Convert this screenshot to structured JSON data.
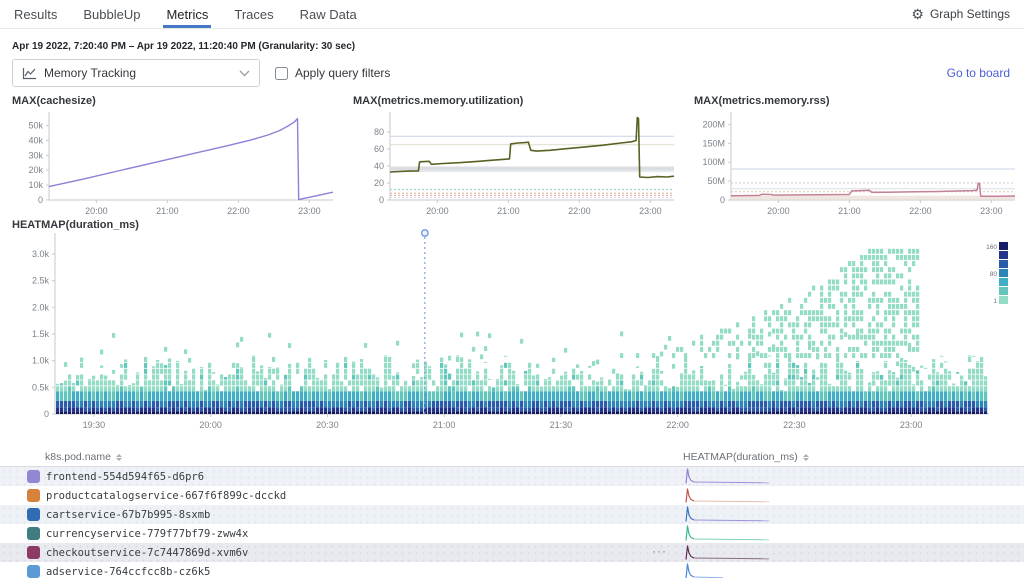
{
  "header": {
    "tabs": [
      {
        "label": "Results",
        "active": false
      },
      {
        "label": "BubbleUp",
        "active": false
      },
      {
        "label": "Metrics",
        "active": true
      },
      {
        "label": "Traces",
        "active": false
      },
      {
        "label": "Raw Data",
        "active": false
      }
    ],
    "settings_label": "Graph Settings"
  },
  "time_range": "Apr 19 2022, 7:20:40 PM – Apr 19 2022, 11:20:40 PM (Granularity: 30 sec)",
  "query": {
    "selector_value": "Memory Tracking",
    "filter_label": "Apply query filters",
    "board_link": "Go to board"
  },
  "colors": {
    "accent_blue": "#4678c8",
    "link_blue": "#4c5fd5",
    "axis_text": "#7c828a",
    "axis_line": "#c6cacd"
  },
  "chart_data": [
    {
      "type": "line",
      "title": "MAX(cachesize)",
      "t_range": [
        0,
        240
      ],
      "x_ticks": [
        {
          "t": 40,
          "label": "20:00"
        },
        {
          "t": 100,
          "label": "21:00"
        },
        {
          "t": 160,
          "label": "22:00"
        },
        {
          "t": 220,
          "label": "23:00"
        }
      ],
      "ylim": [
        0,
        57000
      ],
      "y_ticks": [
        {
          "v": 0,
          "label": "0"
        },
        {
          "v": 10000,
          "label": "10k"
        },
        {
          "v": 20000,
          "label": "20k"
        },
        {
          "v": 30000,
          "label": "30k"
        },
        {
          "v": 40000,
          "label": "40k"
        },
        {
          "v": 50000,
          "label": "50k"
        }
      ],
      "series": [
        {
          "name": "cachesize",
          "color": "#8d80d8",
          "width": 1.4,
          "points": [
            [
              0,
              9000
            ],
            [
              30,
              14200
            ],
            [
              60,
              19800
            ],
            [
              90,
              25300
            ],
            [
              120,
              30800
            ],
            [
              150,
              36300
            ],
            [
              170,
              40100
            ],
            [
              185,
              43600
            ],
            [
              195,
              46600
            ],
            [
              202,
              49600
            ],
            [
              207,
              52200
            ],
            [
              210,
              54600
            ],
            [
              211,
              300
            ],
            [
              240,
              5200
            ]
          ]
        }
      ]
    },
    {
      "type": "line",
      "title": "MAX(metrics.memory.utilization)",
      "t_range": [
        0,
        240
      ],
      "x_ticks": [
        {
          "t": 40,
          "label": "20:00"
        },
        {
          "t": 100,
          "label": "21:00"
        },
        {
          "t": 160,
          "label": "22:00"
        },
        {
          "t": 220,
          "label": "23:00"
        }
      ],
      "ylim": [
        0,
        100
      ],
      "y_ticks": [
        {
          "v": 0,
          "label": "0"
        },
        {
          "v": 20,
          "label": "20"
        },
        {
          "v": 40,
          "label": "40"
        },
        {
          "v": 60,
          "label": "60"
        },
        {
          "v": 80,
          "label": "80"
        }
      ],
      "series": [
        {
          "name": "flat-75",
          "color": "#c9d2e6",
          "width": 1,
          "points": [
            [
              0,
              75
            ],
            [
              240,
              75
            ]
          ]
        },
        {
          "name": "flat-65",
          "color": "#d8e0cb",
          "width": 1,
          "points": [
            [
              0,
              65
            ],
            [
              240,
              65
            ]
          ]
        },
        {
          "name": "flat-37",
          "color": "#dadde1",
          "width": 4,
          "points": [
            [
              0,
              37
            ],
            [
              240,
              37
            ]
          ]
        },
        {
          "name": "flat-34",
          "color": "#e7e9ec",
          "width": 2,
          "points": [
            [
              0,
              34
            ],
            [
              240,
              34
            ]
          ]
        },
        {
          "name": "flat-12",
          "color": "#8fd0c8",
          "width": 1,
          "dash": "2,2",
          "points": [
            [
              0,
              12.5
            ],
            [
              240,
              12.5
            ]
          ]
        },
        {
          "name": "flat-8",
          "color": "#e8b48c",
          "width": 1,
          "dash": "2,2",
          "points": [
            [
              0,
              8
            ],
            [
              240,
              8
            ]
          ]
        },
        {
          "name": "flat-5",
          "color": "#e6a0a8",
          "width": 1,
          "dash": "2,2",
          "points": [
            [
              0,
              5.5
            ],
            [
              240,
              5.5
            ]
          ]
        },
        {
          "name": "flat-3",
          "color": "#d8dce0",
          "width": 1,
          "dash": "2,2",
          "points": [
            [
              0,
              3
            ],
            [
              240,
              3
            ]
          ]
        },
        {
          "name": "memory.utilization",
          "color": "#5a6125",
          "width": 1.6,
          "points": [
            [
              0,
              33
            ],
            [
              8,
              33.5
            ],
            [
              16,
              34
            ],
            [
              24,
              34.2
            ],
            [
              25,
              45
            ],
            [
              33,
              45.5
            ],
            [
              35,
              42
            ],
            [
              45,
              43
            ],
            [
              60,
              44
            ],
            [
              75,
              45.5
            ],
            [
              88,
              47
            ],
            [
              98,
              48
            ],
            [
              101,
              48.3
            ],
            [
              102,
              66
            ],
            [
              108,
              67
            ],
            [
              114,
              67.5
            ],
            [
              117,
              68
            ],
            [
              119,
              58.5
            ],
            [
              124,
              57.5
            ],
            [
              135,
              58.5
            ],
            [
              150,
              60.5
            ],
            [
              165,
              62.5
            ],
            [
              180,
              64.5
            ],
            [
              195,
              67
            ],
            [
              204,
              68.5
            ],
            [
              208,
              70
            ],
            [
              209,
              97
            ],
            [
              210,
              96
            ],
            [
              211,
              27
            ],
            [
              218,
              26.5
            ],
            [
              226,
              27.5
            ],
            [
              234,
              27
            ],
            [
              240,
              28
            ]
          ]
        }
      ]
    },
    {
      "type": "line",
      "title": "MAX(metrics.memory.rss)",
      "t_range": [
        0,
        240
      ],
      "x_ticks": [
        {
          "t": 40,
          "label": "20:00"
        },
        {
          "t": 100,
          "label": "21:00"
        },
        {
          "t": 160,
          "label": "22:00"
        },
        {
          "t": 220,
          "label": "23:00"
        }
      ],
      "ylim": [
        0,
        225
      ],
      "y_ticks": [
        {
          "v": 0,
          "label": "0"
        },
        {
          "v": 50,
          "label": "50M"
        },
        {
          "v": 100,
          "label": "100M"
        },
        {
          "v": 150,
          "label": "150M"
        },
        {
          "v": 200,
          "label": "200M"
        }
      ],
      "series": [
        {
          "name": "flat-82M",
          "color": "#c9d2e6",
          "width": 1,
          "points": [
            [
              0,
              82
            ],
            [
              240,
              82
            ]
          ]
        },
        {
          "name": "flat-45M",
          "color": "#c8cdd3",
          "width": 1,
          "dash": "2,2",
          "points": [
            [
              0,
              45
            ],
            [
              240,
              45
            ]
          ]
        },
        {
          "name": "flat-30M",
          "color": "#dcdfe3",
          "width": 1,
          "points": [
            [
              0,
              30
            ],
            [
              240,
              30
            ]
          ]
        },
        {
          "name": "flat-22M",
          "color": "#e0c8b0",
          "width": 1,
          "dash": "2,2",
          "points": [
            [
              0,
              22
            ],
            [
              240,
              22
            ]
          ]
        },
        {
          "name": "flat-6M",
          "color": "#eee6df",
          "width": 4,
          "points": [
            [
              0,
              6
            ],
            [
              240,
              6
            ]
          ]
        },
        {
          "name": "memory.rss",
          "color": "#c4809a",
          "width": 1.5,
          "points": [
            [
              0,
              11.5
            ],
            [
              20,
              12
            ],
            [
              24,
              12.2
            ],
            [
              26,
              15
            ],
            [
              34,
              14.5
            ],
            [
              36,
              13
            ],
            [
              60,
              13.5
            ],
            [
              90,
              14.2
            ],
            [
              100,
              14.6
            ],
            [
              102,
              24
            ],
            [
              110,
              25
            ],
            [
              117,
              26
            ],
            [
              119,
              20
            ],
            [
              130,
              20.5
            ],
            [
              150,
              21.5
            ],
            [
              175,
              22.5
            ],
            [
              195,
              24
            ],
            [
              204,
              25
            ],
            [
              208,
              26
            ],
            [
              209,
              45
            ],
            [
              210,
              44
            ],
            [
              211,
              10
            ],
            [
              225,
              10
            ],
            [
              240,
              10.5
            ]
          ]
        }
      ]
    },
    {
      "type": "heatmap",
      "title": "HEATMAP(duration_ms)",
      "t_range": [
        0,
        240
      ],
      "x_ticks": [
        {
          "t": 10,
          "label": "19:30"
        },
        {
          "t": 40,
          "label": "20:00"
        },
        {
          "t": 70,
          "label": "20:30"
        },
        {
          "t": 100,
          "label": "21:00"
        },
        {
          "t": 130,
          "label": "21:30"
        },
        {
          "t": 160,
          "label": "22:00"
        },
        {
          "t": 190,
          "label": "22:30"
        },
        {
          "t": 220,
          "label": "23:00"
        }
      ],
      "ylim": [
        0,
        3300
      ],
      "y_ticks": [
        {
          "v": 0,
          "label": "0"
        },
        {
          "v": 500,
          "label": "0.5k"
        },
        {
          "v": 1000,
          "label": "1.0k"
        },
        {
          "v": 1500,
          "label": "1.5k"
        },
        {
          "v": 2000,
          "label": "2.0k"
        },
        {
          "v": 2500,
          "label": "2.5k"
        },
        {
          "v": 3000,
          "label": "3.0k"
        }
      ],
      "palette": [
        "#93dcc5",
        "#63c6bb",
        "#41aec4",
        "#2e86b8",
        "#2a5caa",
        "#24348c",
        "#161e66"
      ],
      "legend": {
        "top": "160",
        "mid": "80",
        "bottom": "1"
      },
      "marker_fraction": 0.396,
      "seed": 42,
      "growth": {
        "start": 0.55,
        "peak": 0.88,
        "max_value": 3100
      }
    }
  ],
  "table": {
    "columns": [
      "k8s.pod.name",
      "HEATMAP(duration_ms)"
    ],
    "rows": [
      {
        "name": "frontend-554d594f65-d6pr6",
        "swatch": "#9186d2",
        "spike_color": "#8d80d8",
        "tail_color": "#9d92dc",
        "peak": 2,
        "shade": true
      },
      {
        "name": "productcatalogservice-667f6f899c-dcckd",
        "swatch": "#d6823a",
        "spike_color": "#c4524a",
        "tail_color": "#e3beb0",
        "peak": 3,
        "shade": false
      },
      {
        "name": "cartservice-67b7b995-8sxmb",
        "swatch": "#2e6db4",
        "spike_color": "#3a6fc4",
        "tail_color": "#9d92dc",
        "peak": 2,
        "shade": true
      },
      {
        "name": "currencyservice-779f77bf79-zww4x",
        "swatch": "#3f7d80",
        "spike_color": "#35b98a",
        "tail_color": "#7fd4b8",
        "peak": 2,
        "shade": false
      },
      {
        "name": "checkoutservice-7c7447869d-xvm6v",
        "swatch": "#8e3a66",
        "spike_color": "#5e2a52",
        "tail_color": "#8a6a80",
        "peak": 3,
        "shade": false,
        "highlight": true,
        "menu": "···"
      },
      {
        "name": "adservice-764ccfcc8b-cz6k5",
        "swatch": "#5b9bd5",
        "spike_color": "#4a86d8",
        "tail_color": "#8ab4e8",
        "peak": 2,
        "shade": false,
        "short_tail": true
      }
    ]
  }
}
